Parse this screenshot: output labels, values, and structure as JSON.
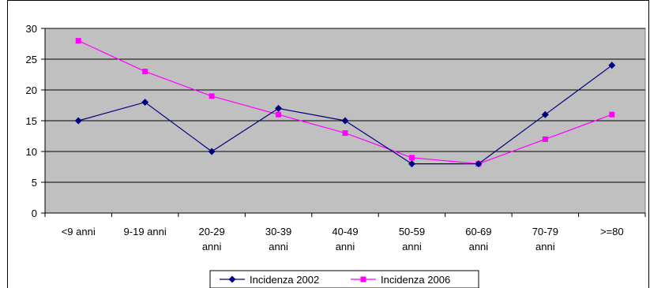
{
  "chart_data": {
    "type": "line",
    "categories": [
      [
        "<9 anni"
      ],
      [
        "9-19 anni"
      ],
      [
        "20-29",
        "anni"
      ],
      [
        "30-39",
        "anni"
      ],
      [
        "40-49",
        "anni"
      ],
      [
        "50-59",
        "anni"
      ],
      [
        "60-69",
        "anni"
      ],
      [
        "70-79",
        "anni"
      ],
      [
        ">=80"
      ]
    ],
    "series": [
      {
        "name": "Incidenza 2002",
        "color": "#000080",
        "marker": "diamond",
        "values": [
          15,
          18,
          10,
          17,
          15,
          8,
          8,
          16,
          24
        ]
      },
      {
        "name": "Incidenza 2006",
        "color": "#FF00FF",
        "marker": "square",
        "values": [
          28,
          23,
          19,
          16,
          13,
          9,
          8,
          12,
          16
        ]
      }
    ],
    "ylim": [
      0,
      30
    ],
    "yticks": [
      0,
      5,
      10,
      15,
      20,
      25,
      30
    ],
    "grid": true,
    "plot_background": "#C0C0C0",
    "legend_position": "bottom"
  }
}
